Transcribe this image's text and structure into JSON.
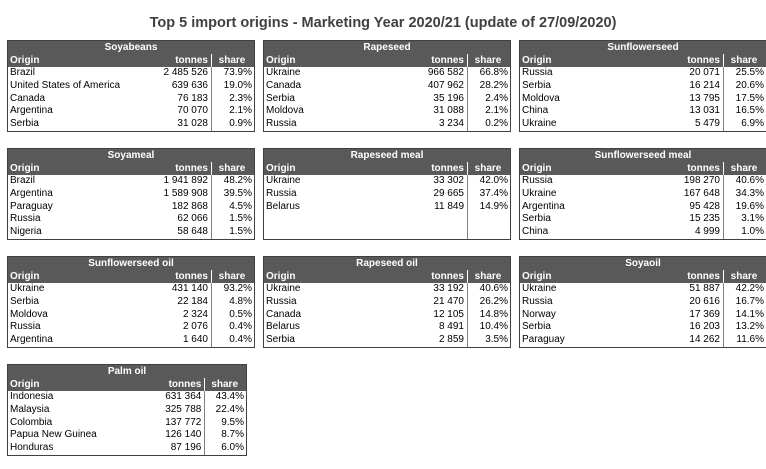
{
  "title": "Top 5 import origins - Marketing Year 2020/21 (update of 27/09/2020)",
  "columns": {
    "origin": "Origin",
    "tonnes": "tonnes",
    "share": "share"
  },
  "blocks": [
    {
      "name": "Soyabeans",
      "rows": [
        {
          "origin": "Brazil",
          "tonnes": "2 485 526",
          "share": "73.9%"
        },
        {
          "origin": "United States of America",
          "tonnes": "639 636",
          "share": "19.0%"
        },
        {
          "origin": "Canada",
          "tonnes": "76 183",
          "share": "2.3%"
        },
        {
          "origin": "Argentina",
          "tonnes": "70 070",
          "share": "2.1%"
        },
        {
          "origin": "Serbia",
          "tonnes": "31 028",
          "share": "0.9%"
        }
      ]
    },
    {
      "name": "Rapeseed",
      "rows": [
        {
          "origin": "Ukraine",
          "tonnes": "966 582",
          "share": "66.8%"
        },
        {
          "origin": "Canada",
          "tonnes": "407 962",
          "share": "28.2%"
        },
        {
          "origin": "Serbia",
          "tonnes": "35 196",
          "share": "2.4%"
        },
        {
          "origin": "Moldova",
          "tonnes": "31 088",
          "share": "2.1%"
        },
        {
          "origin": "Russia",
          "tonnes": "3 234",
          "share": "0.2%"
        }
      ]
    },
    {
      "name": "Sunflowerseed",
      "rows": [
        {
          "origin": "Russia",
          "tonnes": "20 071",
          "share": "25.5%"
        },
        {
          "origin": "Serbia",
          "tonnes": "16 214",
          "share": "20.6%"
        },
        {
          "origin": "Moldova",
          "tonnes": "13 795",
          "share": "17.5%"
        },
        {
          "origin": "China",
          "tonnes": "13 031",
          "share": "16.5%"
        },
        {
          "origin": "Ukraine",
          "tonnes": "5 479",
          "share": "6.9%"
        }
      ]
    },
    {
      "name": "Soyameal",
      "rows": [
        {
          "origin": "Brazil",
          "tonnes": "1 941 892",
          "share": "48.2%"
        },
        {
          "origin": "Argentina",
          "tonnes": "1 589 908",
          "share": "39.5%"
        },
        {
          "origin": "Paraguay",
          "tonnes": "182 868",
          "share": "4.5%"
        },
        {
          "origin": "Russia",
          "tonnes": "62 066",
          "share": "1.5%"
        },
        {
          "origin": "Nigeria",
          "tonnes": "58 648",
          "share": "1.5%"
        }
      ]
    },
    {
      "name": "Rapeseed meal",
      "rows": [
        {
          "origin": "Ukraine",
          "tonnes": "33 302",
          "share": "42.0%"
        },
        {
          "origin": "Russia",
          "tonnes": "29 665",
          "share": "37.4%"
        },
        {
          "origin": "Belarus",
          "tonnes": "11 849",
          "share": "14.9%"
        },
        {
          "origin": "",
          "tonnes": "",
          "share": ""
        },
        {
          "origin": "",
          "tonnes": "",
          "share": ""
        }
      ]
    },
    {
      "name": "Sunflowerseed meal",
      "rows": [
        {
          "origin": "Russia",
          "tonnes": "198 270",
          "share": "40.6%"
        },
        {
          "origin": "Ukraine",
          "tonnes": "167 648",
          "share": "34.3%"
        },
        {
          "origin": "Argentina",
          "tonnes": "95 428",
          "share": "19.6%"
        },
        {
          "origin": "Serbia",
          "tonnes": "15 235",
          "share": "3.1%"
        },
        {
          "origin": "China",
          "tonnes": "4 999",
          "share": "1.0%"
        }
      ]
    },
    {
      "name": "Sunflowerseed oil",
      "rows": [
        {
          "origin": "Ukraine",
          "tonnes": "431 140",
          "share": "93.2%"
        },
        {
          "origin": "Serbia",
          "tonnes": "22 184",
          "share": "4.8%"
        },
        {
          "origin": "Moldova",
          "tonnes": "2 324",
          "share": "0.5%"
        },
        {
          "origin": "Russia",
          "tonnes": "2 076",
          "share": "0.4%"
        },
        {
          "origin": "Argentina",
          "tonnes": "1 640",
          "share": "0.4%"
        }
      ]
    },
    {
      "name": "Rapeseed oil",
      "rows": [
        {
          "origin": "Ukraine",
          "tonnes": "33 192",
          "share": "40.6%"
        },
        {
          "origin": "Russia",
          "tonnes": "21 470",
          "share": "26.2%"
        },
        {
          "origin": "Canada",
          "tonnes": "12 105",
          "share": "14.8%"
        },
        {
          "origin": "Belarus",
          "tonnes": "8 491",
          "share": "10.4%"
        },
        {
          "origin": "Serbia",
          "tonnes": "2 859",
          "share": "3.5%"
        }
      ]
    },
    {
      "name": "Soyaoil",
      "rows": [
        {
          "origin": "Ukraine",
          "tonnes": "51 887",
          "share": "42.2%"
        },
        {
          "origin": "Russia",
          "tonnes": "20 616",
          "share": "16.7%"
        },
        {
          "origin": "Norway",
          "tonnes": "17 369",
          "share": "14.1%"
        },
        {
          "origin": "Serbia",
          "tonnes": "16 203",
          "share": "13.2%"
        },
        {
          "origin": "Paraguay",
          "tonnes": "14 262",
          "share": "11.6%"
        }
      ]
    },
    {
      "name": "Palm oil",
      "rows": [
        {
          "origin": "Indonesia",
          "tonnes": "631 364",
          "share": "43.4%"
        },
        {
          "origin": "Malaysia",
          "tonnes": "325 788",
          "share": "22.4%"
        },
        {
          "origin": "Colombia",
          "tonnes": "137 772",
          "share": "9.5%"
        },
        {
          "origin": "Papua New Guinea",
          "tonnes": "126 140",
          "share": "8.7%"
        },
        {
          "origin": "Honduras",
          "tonnes": "87 196",
          "share": "6.0%"
        }
      ]
    }
  ]
}
